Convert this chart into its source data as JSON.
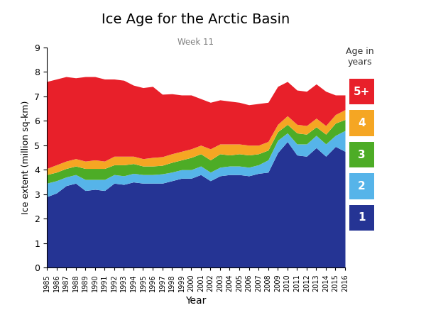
{
  "years": [
    1985,
    1986,
    1987,
    1988,
    1989,
    1990,
    1991,
    1992,
    1993,
    1994,
    1995,
    1996,
    1997,
    1998,
    1999,
    2000,
    2001,
    2002,
    2003,
    2004,
    2005,
    2006,
    2007,
    2008,
    2009,
    2010,
    2011,
    2012,
    2013,
    2014,
    2015,
    2016
  ],
  "age1": [
    2.9,
    3.05,
    3.35,
    3.45,
    3.15,
    3.2,
    3.15,
    3.45,
    3.4,
    3.5,
    3.45,
    3.45,
    3.45,
    3.55,
    3.65,
    3.65,
    3.8,
    3.55,
    3.75,
    3.8,
    3.8,
    3.75,
    3.85,
    3.9,
    4.7,
    5.15,
    4.6,
    4.55,
    4.9,
    4.55,
    4.95,
    4.75
  ],
  "age2": [
    0.55,
    0.5,
    0.35,
    0.35,
    0.45,
    0.4,
    0.45,
    0.35,
    0.35,
    0.35,
    0.35,
    0.35,
    0.38,
    0.35,
    0.35,
    0.35,
    0.35,
    0.35,
    0.35,
    0.35,
    0.35,
    0.35,
    0.35,
    0.5,
    0.5,
    0.35,
    0.45,
    0.5,
    0.5,
    0.5,
    0.45,
    0.85
  ],
  "age3": [
    0.35,
    0.35,
    0.35,
    0.35,
    0.45,
    0.45,
    0.45,
    0.4,
    0.45,
    0.4,
    0.35,
    0.35,
    0.35,
    0.4,
    0.4,
    0.5,
    0.5,
    0.5,
    0.55,
    0.45,
    0.5,
    0.5,
    0.45,
    0.4,
    0.35,
    0.35,
    0.45,
    0.4,
    0.35,
    0.4,
    0.5,
    0.45
  ],
  "age4": [
    0.25,
    0.3,
    0.3,
    0.3,
    0.3,
    0.35,
    0.3,
    0.35,
    0.35,
    0.3,
    0.3,
    0.35,
    0.35,
    0.35,
    0.35,
    0.35,
    0.35,
    0.45,
    0.4,
    0.45,
    0.4,
    0.4,
    0.35,
    0.35,
    0.3,
    0.35,
    0.35,
    0.35,
    0.35,
    0.35,
    0.35,
    0.4
  ],
  "age5": [
    3.55,
    3.5,
    3.45,
    3.3,
    3.45,
    3.4,
    3.35,
    3.15,
    3.1,
    2.9,
    2.9,
    2.9,
    2.55,
    2.45,
    2.3,
    2.2,
    1.9,
    1.9,
    1.8,
    1.75,
    1.7,
    1.65,
    1.7,
    1.6,
    1.55,
    1.4,
    1.4,
    1.4,
    1.4,
    1.4,
    0.8,
    0.6
  ],
  "colors": [
    "#253494",
    "#56b4e9",
    "#4dac26",
    "#f5a623",
    "#e8202a"
  ],
  "title": "Ice Age for the Arctic Basin",
  "subtitle": "Week 11",
  "xlabel": "Year",
  "ylabel": "Ice extent (million sq-km)",
  "ylim": [
    0,
    9
  ],
  "yticks": [
    0,
    1,
    2,
    3,
    4,
    5,
    6,
    7,
    8,
    9
  ],
  "legend_title": "Age in\nyears",
  "legend_colors": [
    "#e8202a",
    "#f5a623",
    "#4dac26",
    "#56b4e9",
    "#253494"
  ],
  "legend_labels": [
    "5+",
    "4",
    "3",
    "2",
    "1"
  ]
}
